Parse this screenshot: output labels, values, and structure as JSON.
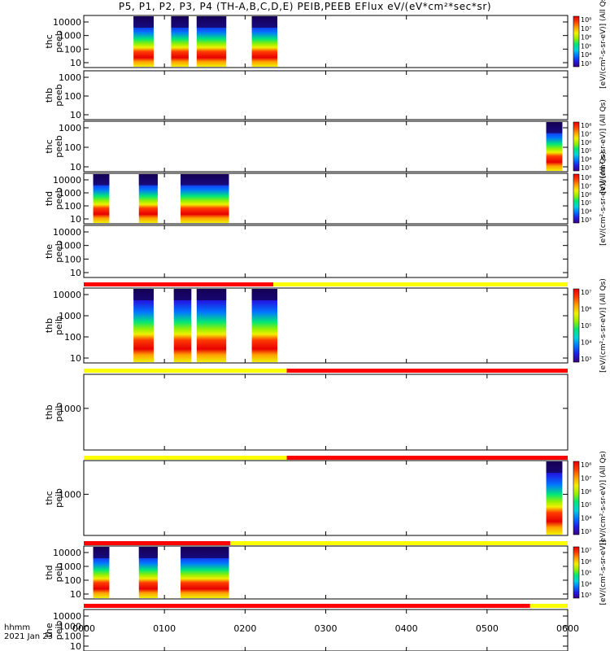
{
  "title": "P5, P1, P2, P3, P4 (TH-A,B,C,D,E) PEIB,PEEB EFlux eV/(eV*cm²*sec*sr)",
  "footer": {
    "time_label": "hhmm",
    "date_label": "2021 Jan 23"
  },
  "colors": {
    "spectrogram": [
      "#3c0082",
      "#1e1ee6",
      "#0078ff",
      "#00d2dc",
      "#00e678",
      "#96f000",
      "#f0f000",
      "#ffa000",
      "#ff3c00",
      "#e60000"
    ],
    "flag_red": "#ff0000",
    "flag_yellow": "#ffff00"
  },
  "chart_data": {
    "type": "heatmap",
    "x_axis": {
      "label": "hhmm",
      "range_hhmm": [
        "0000",
        "0600"
      ],
      "tick_labels": [
        "0000",
        "0100",
        "0200",
        "0300",
        "0400",
        "0500",
        "0600"
      ]
    },
    "panels": [
      {
        "label": [
          "thc",
          "peeb"
        ],
        "yticks": [
          "10000",
          "1000",
          "100",
          "10"
        ],
        "colorbar": true,
        "cbar_ticks": [
          "10⁸",
          "10⁷",
          "10⁶",
          "10⁵",
          "10⁴",
          "10³"
        ],
        "cbar_label": "[eV/(cm²-s-sr-eV)] (All Qs)",
        "blocks": [
          [
            "0037",
            "0052"
          ],
          [
            "0105",
            "0118"
          ],
          [
            "0124",
            "0146"
          ],
          [
            "0205",
            "0224"
          ]
        ]
      },
      {
        "label": [
          "thb",
          "peeb"
        ],
        "yticks": [
          "1000",
          "100",
          "10"
        ],
        "colorbar": false,
        "blocks": []
      },
      {
        "label": [
          "thc",
          "peeb"
        ],
        "yticks": [
          "1000",
          "100",
          "10"
        ],
        "colorbar": true,
        "cbar_ticks": [
          "10⁸",
          "10⁷",
          "10⁶",
          "10⁵",
          "10⁴",
          "10³"
        ],
        "cbar_label": "[eV/(cm²-s-sr-eV)] (All Qs)",
        "blocks": [
          [
            "0544",
            "0556"
          ]
        ]
      },
      {
        "label": [
          "thd",
          "peeb"
        ],
        "yticks": [
          "10000",
          "1000",
          "100",
          "10"
        ],
        "colorbar": true,
        "cbar_ticks": [
          "10⁸",
          "10⁷",
          "10⁶",
          "10⁵",
          "10⁴",
          "10³"
        ],
        "cbar_label": "[eV/(cm²-s-sr-eV)] (All Qs)",
        "blocks": [
          [
            "0007",
            "0019"
          ],
          [
            "0041",
            "0055"
          ],
          [
            "0112",
            "0148"
          ]
        ]
      },
      {
        "label": [
          "the",
          "peeb"
        ],
        "yticks": [
          "10000",
          "1000",
          "100",
          "10"
        ],
        "colorbar": false,
        "blocks": []
      },
      {
        "label": [
          "thb",
          "peib"
        ],
        "yticks": [
          "10000",
          "1000",
          "100",
          "10"
        ],
        "colorbar": true,
        "cbar_ticks": [
          "10⁷",
          "10⁶",
          "10⁵",
          "10⁴",
          "10³"
        ],
        "cbar_label": "[eV/(cm²-s-sr-eV)] (All Qs)",
        "blocks": [
          [
            "0037",
            "0052"
          ],
          [
            "0107",
            "0120"
          ],
          [
            "0124",
            "0146"
          ],
          [
            "0205",
            "0224"
          ]
        ]
      },
      {
        "label": [
          "thb",
          "peib"
        ],
        "yticks": [
          "1000"
        ],
        "colorbar": false,
        "blocks": []
      },
      {
        "label": [
          "thc",
          "peib"
        ],
        "yticks": [
          "1000"
        ],
        "colorbar": true,
        "cbar_ticks": [
          "10⁸",
          "10⁷",
          "10⁶",
          "10⁵",
          "10⁴",
          "10³"
        ],
        "cbar_label": "[eV/(cm²-s-sr-eV)] (All Qs)",
        "blocks": [
          [
            "0544",
            "0556"
          ]
        ]
      },
      {
        "label": [
          "thd",
          "peib"
        ],
        "yticks": [
          "10000",
          "1000",
          "100",
          "10"
        ],
        "colorbar": true,
        "cbar_ticks": [
          "10⁷",
          "10⁶",
          "10⁵",
          "10⁴",
          "10³"
        ],
        "cbar_label": "[eV/(cm²-s-sr-eV)]",
        "blocks": [
          [
            "0007",
            "0019"
          ],
          [
            "0041",
            "0055"
          ],
          [
            "0112",
            "0148"
          ]
        ]
      },
      {
        "label": [
          "the",
          "peib"
        ],
        "yticks": [
          "10000",
          "1000",
          "100",
          "10"
        ],
        "colorbar": false,
        "blocks": []
      }
    ],
    "flag_bars": [
      {
        "after_panel": 4,
        "segments": [
          [
            "0000",
            "0221",
            "red"
          ],
          [
            "0221",
            "0600",
            "yellow"
          ]
        ]
      },
      {
        "after_panel": 5,
        "segments": [
          [
            "0000",
            "0231",
            "yellow"
          ],
          [
            "0231",
            "0600",
            "red"
          ]
        ]
      },
      {
        "after_panel": 6,
        "segments": [
          [
            "0000",
            "0231",
            "yellow"
          ],
          [
            "0231",
            "0600",
            "red"
          ]
        ]
      },
      {
        "after_panel": 7,
        "segments": [
          [
            "0000",
            "0149",
            "red"
          ],
          [
            "0149",
            "0600",
            "yellow"
          ]
        ]
      },
      {
        "after_panel": 8,
        "segments": [
          [
            "0000",
            "0532",
            "red"
          ],
          [
            "0532",
            "0600",
            "yellow"
          ]
        ]
      }
    ]
  }
}
